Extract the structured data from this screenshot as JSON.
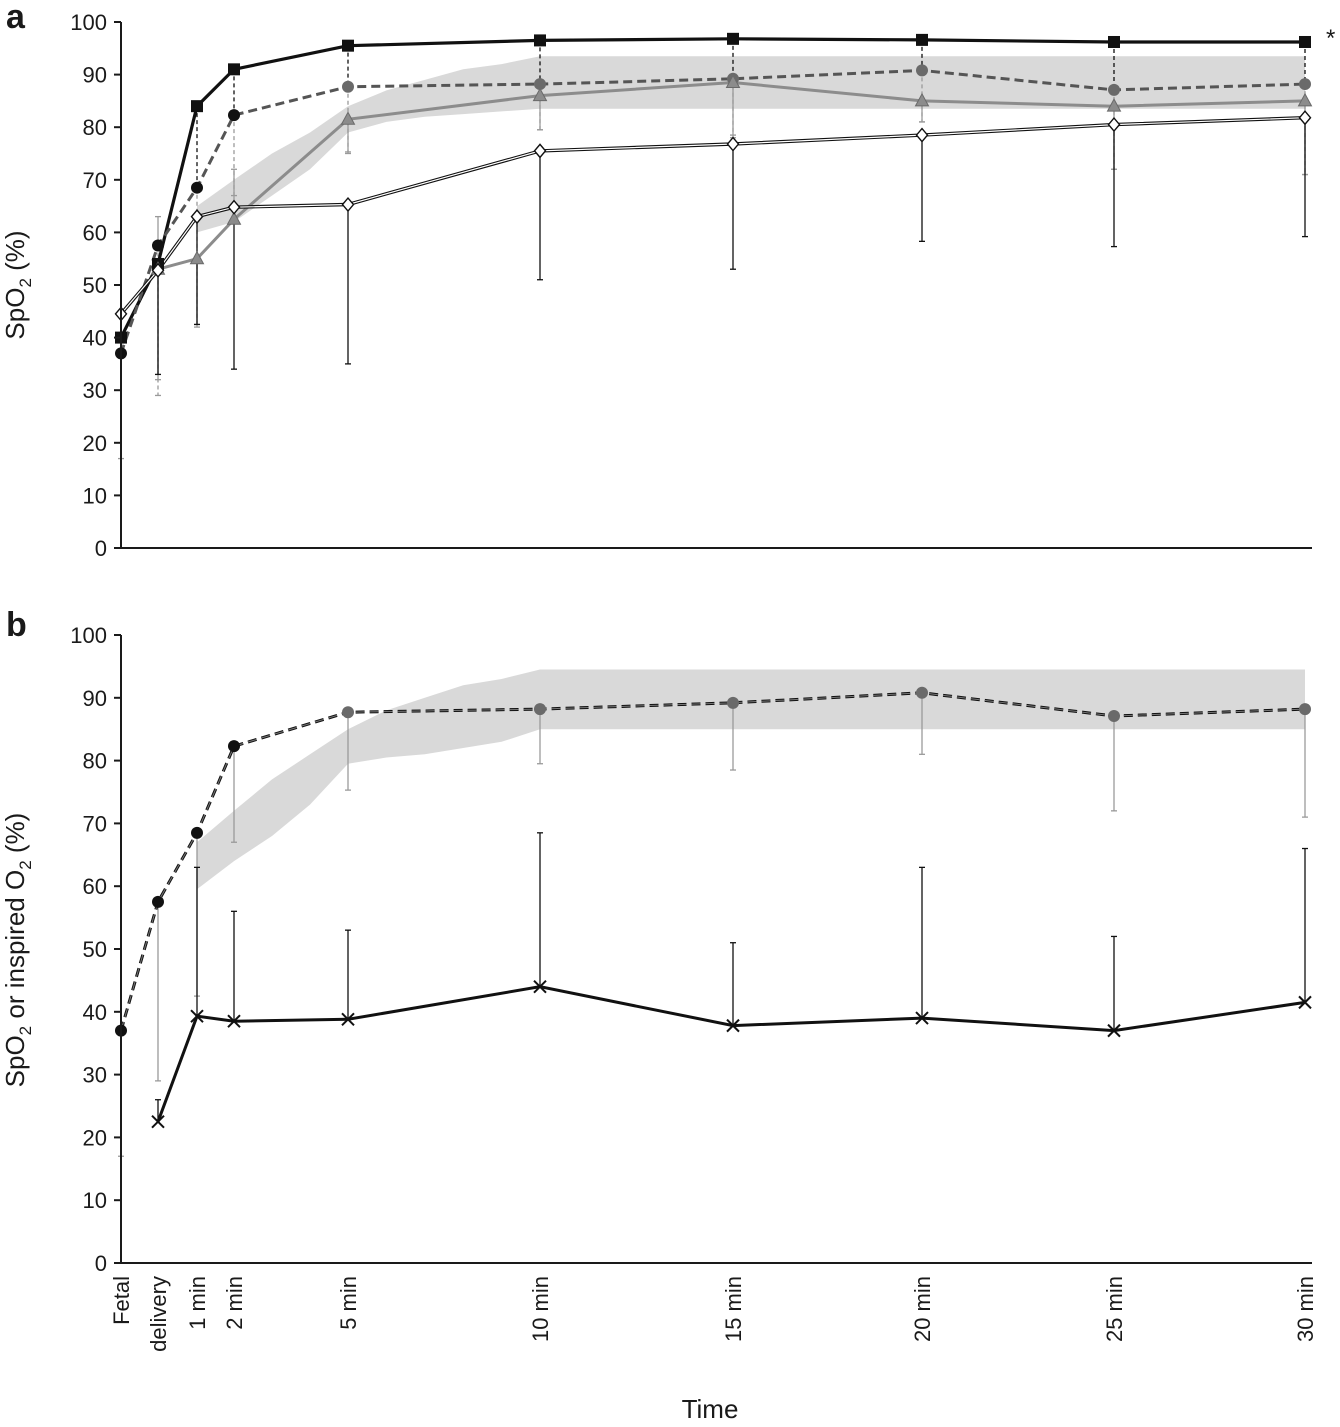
{
  "chart_data": [
    {
      "panel": "a",
      "type": "line",
      "ylabel": "SpO2 (%)",
      "ylim": [
        0,
        100
      ],
      "yticks": [
        0,
        10,
        20,
        30,
        40,
        50,
        60,
        70,
        80,
        90,
        100
      ],
      "significance_marker": "*",
      "x_minutes": [
        -1,
        0,
        1,
        2,
        5,
        10,
        15,
        20,
        25,
        30
      ],
      "reference_band": {
        "x": [
          1,
          2,
          3,
          4,
          5,
          6,
          7,
          8,
          9,
          10,
          15,
          20,
          25,
          30
        ],
        "lower": [
          60,
          62,
          67,
          72,
          79,
          81,
          82,
          82.5,
          83,
          83.5,
          83.5,
          83.5,
          83.5,
          83.5
        ],
        "upper": [
          65,
          70,
          75,
          79,
          84,
          87,
          89,
          91,
          92,
          93.5,
          93.5,
          93.5,
          93.5,
          93.5
        ]
      },
      "series": [
        {
          "style": "solid-black-square",
          "values": [
            40,
            54,
            84,
            91,
            95.5,
            96.5,
            96.8,
            96.6,
            96.2,
            96.2
          ],
          "err_low": [
            null,
            null,
            69,
            82,
            88,
            88,
            89,
            91,
            87,
            88
          ]
        },
        {
          "style": "dashed-black-circle",
          "values": [
            37,
            57.5,
            68.5,
            82.3,
            87.7,
            88.2,
            89.2,
            90.8,
            87.1,
            88.2
          ],
          "err_low": [
            17,
            29,
            42.5,
            67,
            75.3,
            79.5,
            78.5,
            81,
            72,
            71
          ],
          "err_high": [
            null,
            63,
            null,
            null,
            null,
            null,
            null,
            null,
            null,
            null
          ]
        },
        {
          "style": "gray-triangle",
          "values": [
            null,
            53,
            55,
            62.5,
            81.5,
            86,
            88.5,
            85,
            84,
            85
          ],
          "err_low": [
            null,
            32,
            42,
            72,
            75,
            79.5,
            78,
            81,
            72,
            71
          ],
          "err_high": [
            null,
            null,
            null,
            null,
            null,
            null,
            null,
            null,
            null,
            null
          ]
        },
        {
          "style": "white-diamond",
          "values": [
            44.5,
            52.8,
            63,
            64.8,
            65.3,
            75.5,
            76.8,
            78.5,
            80.5,
            81.8
          ],
          "err_low": [
            null,
            33,
            42.5,
            34,
            35,
            51,
            53,
            58.3,
            57.3,
            59.2
          ]
        }
      ]
    },
    {
      "panel": "b",
      "type": "line",
      "ylabel": "SpO2 or inspired O2 (%)",
      "xlabel": "Time",
      "ylim": [
        0,
        100
      ],
      "yticks": [
        0,
        10,
        20,
        30,
        40,
        50,
        60,
        70,
        80,
        90,
        100
      ],
      "categories_line1": [
        "Fetal",
        "",
        "1 min",
        "2 min",
        "5 min",
        "10 min",
        "15 min",
        "20 min",
        "25 min",
        "30 min"
      ],
      "categories_line2": [
        "",
        "delivery",
        "",
        "",
        "",
        "",
        "",
        "",
        "",
        ""
      ],
      "x_minutes": [
        -1,
        0,
        1,
        2,
        5,
        10,
        15,
        20,
        25,
        30
      ],
      "reference_band": {
        "x": [
          1,
          2,
          3,
          4,
          5,
          6,
          7,
          8,
          9,
          10,
          15,
          20,
          25,
          30
        ],
        "lower": [
          59.5,
          64,
          68,
          73,
          79.5,
          80.5,
          81,
          82,
          83,
          85,
          85,
          85,
          85,
          85
        ],
        "upper": [
          67,
          72,
          77,
          81,
          85,
          88,
          90,
          92,
          93,
          94.5,
          94.5,
          94.5,
          94.5,
          94.5
        ]
      },
      "series": [
        {
          "style": "dashed-black-circle",
          "values": [
            37,
            57.5,
            68.5,
            82.3,
            87.7,
            88.2,
            89.2,
            90.8,
            87.1,
            88.2
          ],
          "err_low": [
            17,
            29,
            42.5,
            67,
            75.3,
            79.5,
            78.5,
            81,
            72,
            71
          ]
        },
        {
          "style": "solid-black-cross",
          "values": [
            null,
            22.5,
            39.3,
            38.5,
            38.8,
            44,
            37.8,
            39,
            37,
            41.5
          ],
          "err_high": [
            null,
            26,
            63,
            56,
            53,
            68.5,
            51,
            63,
            52,
            66
          ]
        }
      ]
    }
  ],
  "colors": {
    "axis": "#1a1a1a",
    "band": "#d9d9d9",
    "black_series": "#111111",
    "gray_series": "#8c8c8c",
    "gray_marker": "#6a6a6a",
    "error_light": "#9a9a9a"
  }
}
